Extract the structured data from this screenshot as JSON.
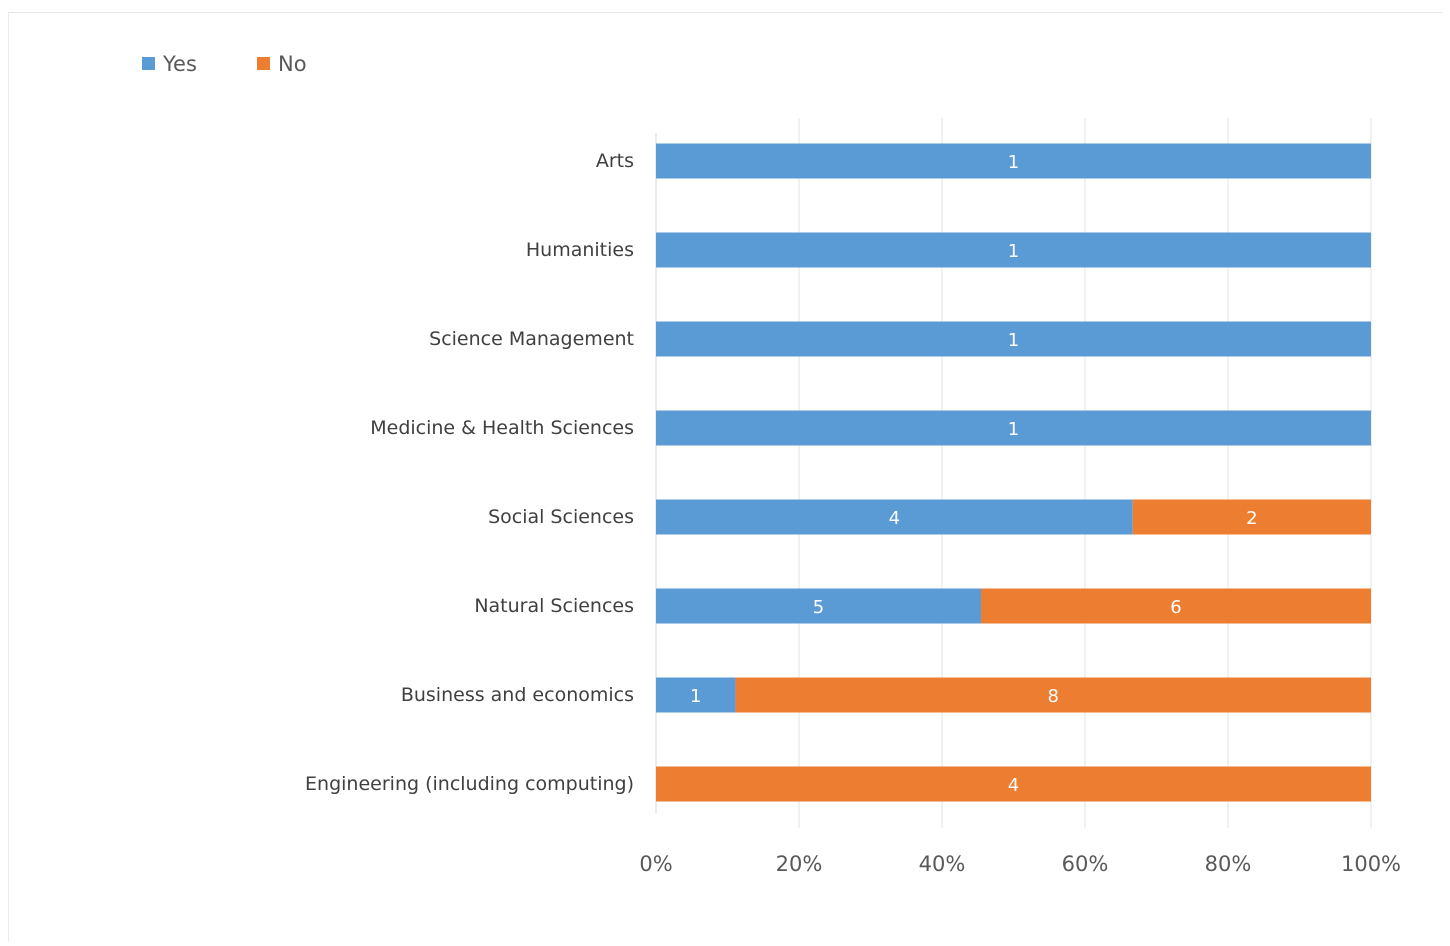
{
  "chart_data": {
    "type": "bar",
    "orientation": "horizontal",
    "stacked": "percent",
    "title": "",
    "xlabel": "",
    "ylabel": "",
    "categories": [
      "Arts",
      "Humanities",
      "Science Management",
      "Medicine & Health Sciences",
      "Social Sciences",
      "Natural Sciences",
      "Business and economics",
      "Engineering (including computing)"
    ],
    "series": [
      {
        "name": "Yes",
        "color": "#5B9BD5",
        "values": [
          1,
          1,
          1,
          1,
          4,
          5,
          1,
          0
        ]
      },
      {
        "name": "No",
        "color": "#ED7D31",
        "values": [
          0,
          0,
          0,
          0,
          2,
          6,
          8,
          4
        ]
      }
    ],
    "xlim": [
      0,
      100
    ],
    "x_ticks": [
      "0%",
      "20%",
      "40%",
      "60%",
      "80%",
      "100%"
    ],
    "grid": "vertical",
    "legend_position": "top-left"
  }
}
